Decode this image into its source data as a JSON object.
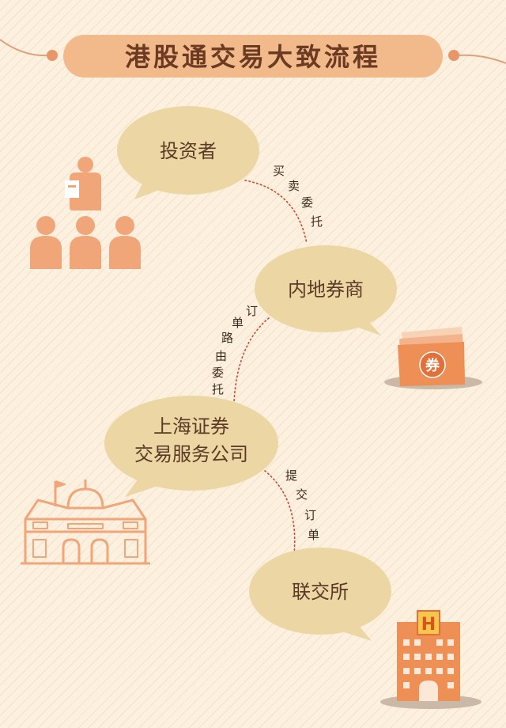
{
  "title": "港股通交易大致流程",
  "nodes": {
    "investor": "投资者",
    "broker": "内地券商",
    "sh_company_line1": "上海证券",
    "sh_company_line2": "交易服务公司",
    "exchange": "联交所"
  },
  "edges": {
    "investor_to_broker": [
      "买",
      "卖",
      "委",
      "托"
    ],
    "broker_to_company": [
      "订",
      "单",
      "路",
      "由",
      "委",
      "托"
    ],
    "company_to_exchange": [
      "提",
      "交",
      "订",
      "单"
    ]
  },
  "icons": {
    "coupon_label": "券",
    "hotel_label": "H"
  },
  "colors": {
    "background": "#fdf0de",
    "bubble": "#ecd7a4",
    "title_pill": "#f2b98a",
    "accent": "#f0a679",
    "dotted_line": "#d5402e"
  }
}
